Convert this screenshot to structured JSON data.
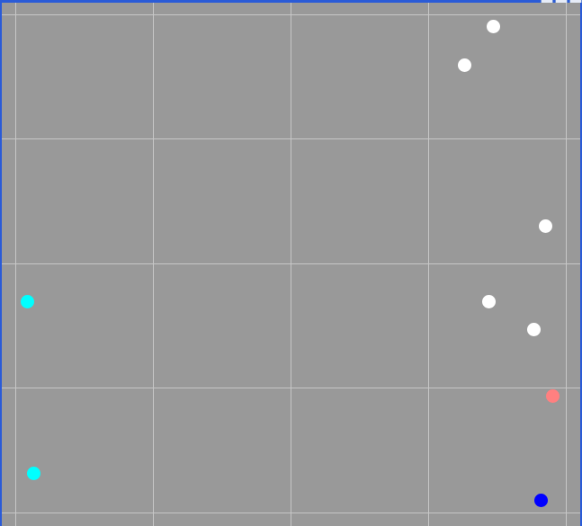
{
  "window": {
    "title": "",
    "controls": [
      "minimize-button",
      "maximize-button",
      "close-button"
    ]
  },
  "colors": {
    "background": "#999999",
    "grid": "#c7c7c7",
    "frame": "#2a5bd7",
    "white": "#ffffff",
    "cyan": "#00ffff",
    "salmon": "#ff8080",
    "blue": "#0000ff"
  }
}
